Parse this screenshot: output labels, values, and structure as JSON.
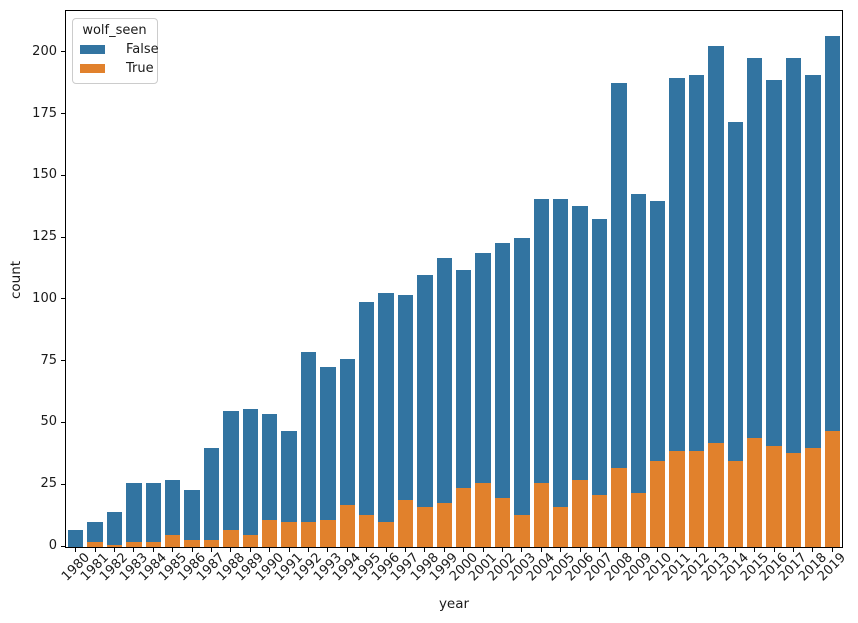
{
  "chart_data": {
    "type": "bar",
    "stacked": true,
    "title": "",
    "xlabel": "year",
    "ylabel": "count",
    "categories": [
      "1980",
      "1981",
      "1982",
      "1983",
      "1984",
      "1985",
      "1986",
      "1987",
      "1988",
      "1989",
      "1990",
      "1991",
      "1992",
      "1993",
      "1994",
      "1995",
      "1996",
      "1997",
      "1998",
      "1999",
      "2000",
      "2001",
      "2002",
      "2003",
      "2004",
      "2005",
      "2006",
      "2007",
      "2008",
      "2009",
      "2010",
      "2011",
      "2012",
      "2013",
      "2014",
      "2015",
      "2016",
      "2017",
      "2018",
      "2019"
    ],
    "series": [
      {
        "name": "False",
        "color": "#3274a1",
        "values": [
          7,
          8,
          13,
          24,
          24,
          22,
          20,
          37,
          48,
          51,
          43,
          37,
          69,
          62,
          59,
          86,
          93,
          83,
          94,
          99,
          88,
          93,
          103,
          112,
          115,
          125,
          111,
          112,
          156,
          121,
          105,
          151,
          152,
          161,
          137,
          154,
          148,
          160,
          151,
          160
        ]
      },
      {
        "name": "True",
        "color": "#e1812c",
        "values": [
          0,
          2,
          1,
          2,
          2,
          5,
          3,
          3,
          7,
          5,
          11,
          10,
          10,
          11,
          17,
          13,
          10,
          19,
          16,
          18,
          24,
          26,
          20,
          13,
          26,
          16,
          27,
          21,
          32,
          22,
          35,
          39,
          39,
          42,
          35,
          44,
          41,
          38,
          40,
          47
        ]
      }
    ],
    "totals": [
      7,
      10,
      14,
      26,
      26,
      27,
      23,
      40,
      55,
      56,
      54,
      47,
      79,
      73,
      76,
      99,
      103,
      102,
      110,
      117,
      112,
      119,
      123,
      125,
      141,
      141,
      138,
      133,
      188,
      143,
      140,
      190,
      191,
      203,
      172,
      198,
      189,
      198,
      191,
      207
    ],
    "stack_order_bottom_to_top": [
      "True",
      "False"
    ],
    "legend": {
      "title": "wolf_seen",
      "position": "upper left"
    },
    "yticks": [
      0,
      25,
      50,
      75,
      100,
      125,
      150,
      175,
      200
    ],
    "ylim": [
      0,
      217
    ],
    "grid": false,
    "bar_rel_width": 0.8,
    "axis_color": "#000000",
    "text_color": "#1a1a1a",
    "background": "#ffffff"
  }
}
